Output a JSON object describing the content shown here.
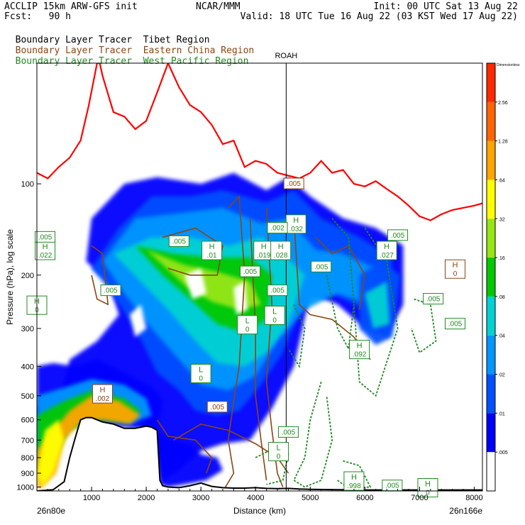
{
  "header": {
    "left_line1": "ACCLIP 15km ARW-GFS init",
    "center_line1": "NCAR/MMM",
    "right_line1": "Init: 00 UTC Sat 13 Aug 22",
    "left_line2": "Fcst:   90 h",
    "right_line2": "Valid: 18 UTC Tue 16 Aug 22 (03 KST Wed 17 Aug 22)"
  },
  "legend": [
    {
      "prefix": "Boundary Layer Tracer",
      "region": "Tibet Region",
      "color": "#000000"
    },
    {
      "prefix": "Boundary Layer Tracer",
      "region": "Eastern China Region",
      "color": "#8b4513"
    },
    {
      "prefix": "Boundary Layer Tracer",
      "region": "West Pacific Region",
      "color": "#1f8a1f"
    }
  ],
  "chart_data": {
    "type": "heatmap",
    "xlabel": "Distance (km)",
    "ylabel": "Pressure (hPa), log scale",
    "x_ticks": [
      "1000",
      "2000",
      "3000",
      "4000",
      "5000",
      "6000",
      "7000",
      "8000"
    ],
    "y_ticks": [
      "100",
      "200",
      "300",
      "400",
      "500",
      "600",
      "700",
      "800",
      "900",
      "1000"
    ],
    "xlim": [
      0,
      8150
    ],
    "ylim": [
      1030,
      40
    ],
    "y_scale": "log",
    "cross_section_start": "26n80e",
    "cross_section_end": "26n166e",
    "vertical_marker": {
      "label": "ROAH",
      "x": 4560
    },
    "colorbar": {
      "title": "Dimensionless",
      "labels": [
        ".005",
        ".01",
        ".02",
        ".04",
        ".08",
        ".16",
        ".32",
        ".64",
        "1.28",
        "2.56"
      ],
      "colors": [
        "#ffffff",
        "#0000ff",
        "#0050ff",
        "#0096ff",
        "#00d2d2",
        "#00c800",
        "#96e614",
        "#ffff00",
        "#ffa500",
        "#ff6400",
        "#ff2800"
      ]
    },
    "tropopause": {
      "color": "#ff0000",
      "x": [
        0,
        200,
        400,
        600,
        800,
        950,
        1100,
        1150,
        1200,
        1400,
        1600,
        1800,
        2000,
        2200,
        2400,
        2600,
        2800,
        3000,
        3200,
        3400,
        3600,
        3800,
        4000,
        4200,
        4400,
        4600,
        4800,
        5000,
        5200,
        5400,
        5600,
        5800,
        6000,
        6200,
        6400,
        6600,
        6800,
        7000,
        7200,
        7400,
        7600,
        7800,
        8000,
        8150
      ],
      "p": [
        92,
        96,
        88,
        82,
        72,
        55,
        40,
        40,
        44,
        58,
        60,
        66,
        62,
        50,
        40,
        48,
        55,
        58,
        64,
        74,
        72,
        88,
        84,
        86,
        92,
        94,
        96,
        92,
        84,
        92,
        90,
        100,
        102,
        98,
        104,
        110,
        118,
        128,
        132,
        126,
        122,
        120,
        118,
        116
      ]
    },
    "terrain": {
      "x": [
        0,
        300,
        500,
        600,
        700,
        800,
        900,
        1000,
        1100,
        1200,
        1400,
        1600,
        1800,
        2000,
        2100,
        2200,
        2250,
        2300,
        2400,
        2600,
        2800,
        3000,
        3200,
        3400,
        3600,
        3800,
        4000,
        4200,
        4400,
        4600,
        4800,
        5000,
        5500,
        6000,
        6500,
        7000,
        7500,
        8000,
        8150
      ],
      "p": [
        1030,
        1020,
        960,
        800,
        690,
        600,
        590,
        590,
        600,
        610,
        620,
        640,
        640,
        630,
        635,
        650,
        950,
        990,
        1000,
        1005,
        990,
        970,
        995,
        1005,
        1008,
        1008,
        1005,
        1010,
        1012,
        1010,
        1015,
        1018,
        1020,
        1022,
        1022,
        1022,
        1022,
        1022,
        1022
      ]
    },
    "labels": [
      {
        "text": "H",
        "sub": ".002",
        "x": 1200,
        "p": 490,
        "color": "#8b4513"
      },
      {
        "text": "H",
        "sub": ".022",
        "x": 150,
        "p": 165,
        "color": "#1f8a1f"
      },
      {
        "text": "H",
        "sub": "0",
        "x": 0,
        "p": 250,
        "color": "#1f8a1f"
      },
      {
        "text": "L",
        "sub": "0",
        "x": 3000,
        "p": 420,
        "color": "#1f8a1f"
      },
      {
        "text": "L",
        "sub": "0",
        "x": 3850,
        "p": 290,
        "color": "#1f8a1f"
      },
      {
        "text": "L",
        "sub": "0",
        "x": 4350,
        "p": 270,
        "color": "#1f8a1f"
      },
      {
        "text": "H",
        "sub": ".01",
        "x": 3200,
        "p": 165,
        "color": "#1f8a1f"
      },
      {
        "text": "H",
        "sub": ".019",
        "x": 4150,
        "p": 165,
        "color": "#1f8a1f"
      },
      {
        "text": "H",
        "sub": ".028",
        "x": 4460,
        "p": 165,
        "color": "#1f8a1f"
      },
      {
        "text": "H",
        "sub": ".032",
        "x": 4740,
        "p": 135,
        "color": "#1f8a1f"
      },
      {
        "text": "H",
        "sub": ".027",
        "x": 6400,
        "p": 165,
        "color": "#1f8a1f"
      },
      {
        "text": "H",
        "sub": ".092",
        "x": 5900,
        "p": 350,
        "color": "#1f8a1f"
      },
      {
        "text": "H",
        "sub": ".998",
        "x": 5800,
        "p": 950,
        "color": "#1f8a1f"
      },
      {
        "text": "H",
        "sub": "0",
        "x": 7150,
        "p": 1000,
        "color": "#1f8a1f"
      },
      {
        "text": "H",
        "sub": "0",
        "x": 7650,
        "p": 190,
        "color": "#8b4513"
      },
      {
        "text": "L",
        "sub": "0",
        "x": 4420,
        "p": 760,
        "color": "#1f8a1f"
      }
    ],
    "value_labels": [
      {
        "text": ".005",
        "x": 150,
        "p": 150,
        "color": "#1f8a1f"
      },
      {
        "text": ".005",
        "x": 1350,
        "p": 225,
        "color": "#1f8a1f"
      },
      {
        "text": ".005",
        "x": 2600,
        "p": 155,
        "color": "#1f8a1f"
      },
      {
        "text": ".005",
        "x": 3900,
        "p": 195,
        "color": "#1f8a1f"
      },
      {
        "text": ".002",
        "x": 4400,
        "p": 140,
        "color": "#1f8a1f"
      },
      {
        "text": ".005",
        "x": 4400,
        "p": 225,
        "color": "#1f8a1f"
      },
      {
        "text": ".005",
        "x": 4700,
        "p": 100,
        "color": "#8b4513"
      },
      {
        "text": ".005",
        "x": 4600,
        "p": 660,
        "color": "#1f8a1f"
      },
      {
        "text": ".005",
        "x": 3300,
        "p": 545,
        "color": "#8b4513"
      },
      {
        "text": ".005",
        "x": 5200,
        "p": 188,
        "color": "#1f8a1f"
      },
      {
        "text": ".005",
        "x": 6600,
        "p": 148,
        "color": "#1f8a1f"
      },
      {
        "text": ".005",
        "x": 7250,
        "p": 240,
        "color": "#1f8a1f"
      },
      {
        "text": ".005",
        "x": 7650,
        "p": 290,
        "color": "#1f8a1f"
      },
      {
        "text": ".005",
        "x": 6500,
        "p": 990,
        "color": "#1f8a1f"
      }
    ]
  }
}
